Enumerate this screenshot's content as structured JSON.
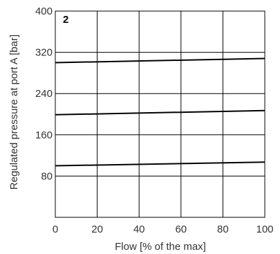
{
  "chart_data": {
    "type": "line",
    "title": "",
    "panel_label": "2",
    "xlabel": "Flow [% of the max]",
    "ylabel": "Regulated pressure at port A [bar]",
    "xlim": [
      0,
      100
    ],
    "ylim": [
      0,
      400
    ],
    "xticks": [
      "0",
      "20",
      "40",
      "60",
      "80",
      "100"
    ],
    "yticks": [
      "80",
      "160",
      "240",
      "320",
      "400"
    ],
    "grid": true,
    "series": [
      {
        "x": [
          0,
          100
        ],
        "y": [
          300,
          308
        ]
      },
      {
        "x": [
          0,
          100
        ],
        "y": [
          199,
          207
        ]
      },
      {
        "x": [
          0,
          100
        ],
        "y": [
          100,
          107
        ]
      }
    ],
    "colors": {
      "line": "#000000",
      "grid": "#000000",
      "text": "#333333"
    }
  }
}
